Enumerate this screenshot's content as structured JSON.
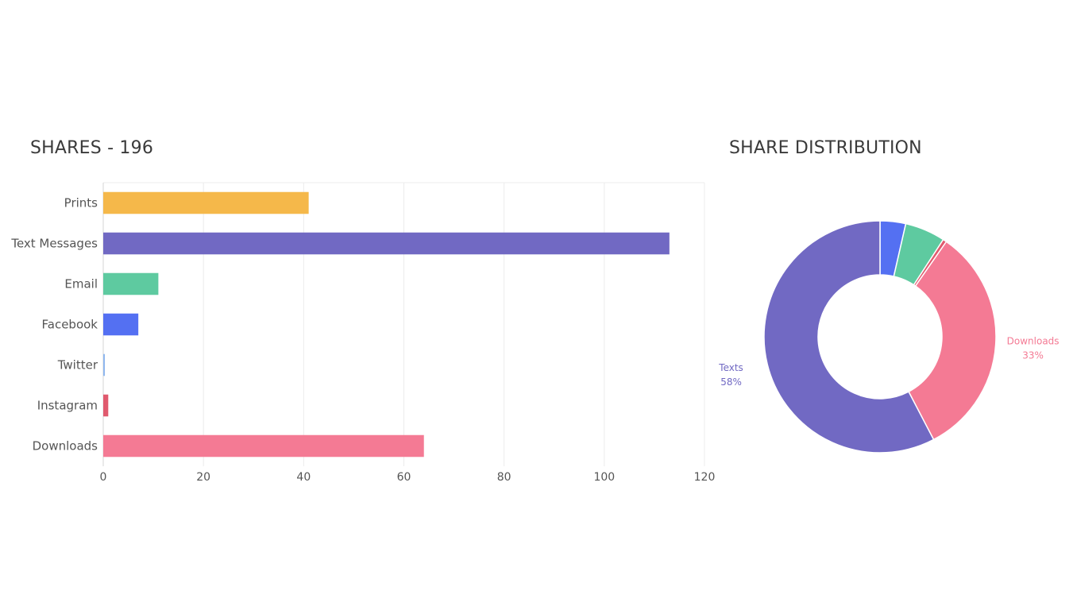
{
  "bar_panel": {
    "title": "SHARES - 196"
  },
  "donut_panel": {
    "title": "SHARE DISTRIBUTION"
  },
  "chart_data": [
    {
      "type": "bar",
      "orientation": "horizontal",
      "title": "SHARES - 196",
      "categories": [
        "Prints",
        "Text Messages",
        "Email",
        "Facebook",
        "Twitter",
        "Instagram",
        "Downloads"
      ],
      "values": [
        41,
        113,
        11,
        7,
        0,
        1,
        64
      ],
      "colors": [
        "#f5b84a",
        "#7169c3",
        "#5ecaa0",
        "#5470f2",
        "#8fb7ee",
        "#e05a6e",
        "#f47a94"
      ],
      "xlim": [
        0,
        120
      ],
      "xticks": [
        0,
        20,
        40,
        60,
        80,
        100,
        120
      ],
      "grid": "vertical",
      "xlabel": "",
      "ylabel": ""
    },
    {
      "type": "pie",
      "variant": "donut",
      "title": "SHARE DISTRIBUTION",
      "slices": [
        {
          "value": 7,
          "color": "#5470f2"
        },
        {
          "value": 11,
          "color": "#5ecaa0"
        },
        {
          "value": 1,
          "color": "#e05a6e"
        },
        {
          "value": 64,
          "color": "#f47a94",
          "label": "Downloads",
          "pct": "33%"
        },
        {
          "value": 113,
          "color": "#7169c3",
          "label": "Texts",
          "pct": "58%"
        }
      ]
    }
  ]
}
